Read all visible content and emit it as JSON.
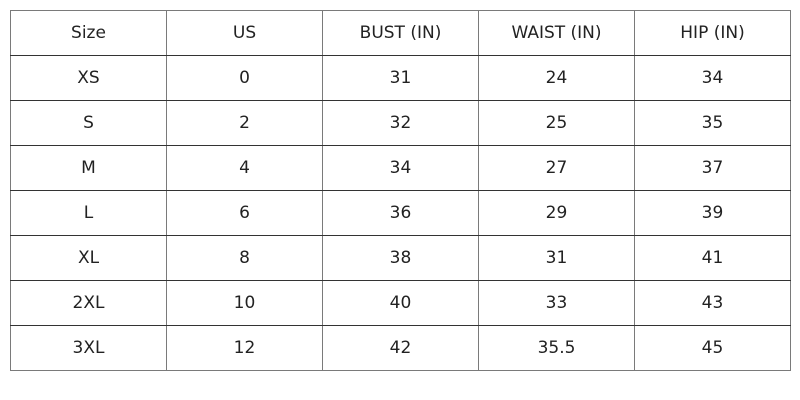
{
  "table": {
    "headers": [
      "Size",
      "US",
      "BUST (IN)",
      "WAIST (IN)",
      "HIP (IN)"
    ],
    "rows": [
      [
        "XS",
        "0",
        "31",
        "24",
        "34"
      ],
      [
        "S",
        "2",
        "32",
        "25",
        "35"
      ],
      [
        "M",
        "4",
        "34",
        "27",
        "37"
      ],
      [
        "L",
        "6",
        "36",
        "29",
        "39"
      ],
      [
        "XL",
        "8",
        "38",
        "31",
        "41"
      ],
      [
        "2XL",
        "10",
        "40",
        "33",
        "43"
      ],
      [
        "3XL",
        "12",
        "42",
        "35.5",
        "45"
      ]
    ]
  }
}
